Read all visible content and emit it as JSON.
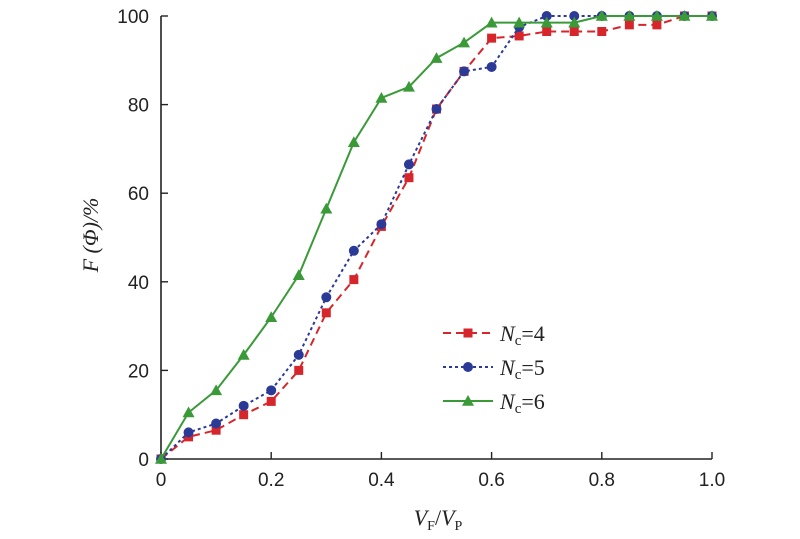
{
  "chart_data": {
    "type": "line",
    "xlabel": {
      "main": "V",
      "sub1": "F",
      "sep": "/",
      "main2": "V",
      "sub2": "P"
    },
    "ylabel": "F (Φ)/%",
    "xlim": [
      0,
      1.0
    ],
    "ylim": [
      0,
      100
    ],
    "xticks": [
      "0",
      "0.2",
      "0.4",
      "0.6",
      "0.8",
      "1.0"
    ],
    "yticks": [
      "0",
      "20",
      "40",
      "60",
      "80",
      "100"
    ],
    "xtick_values": [
      0,
      0.2,
      0.4,
      0.6,
      0.8,
      1.0
    ],
    "ytick_values": [
      0,
      20,
      40,
      60,
      80,
      100
    ],
    "grid": false,
    "legend_position": "center-right",
    "series": [
      {
        "name": "Nc=4",
        "label_main": "N",
        "label_sub": "c",
        "label_value": "=4",
        "color": "#d7262b",
        "marker": "square",
        "dash": "dashed",
        "x": [
          0,
          0.05,
          0.1,
          0.15,
          0.2,
          0.25,
          0.3,
          0.35,
          0.4,
          0.45,
          0.5,
          0.55,
          0.6,
          0.65,
          0.7,
          0.75,
          0.8,
          0.85,
          0.9,
          0.95,
          1.0
        ],
        "values": [
          0,
          5,
          6.5,
          10,
          13,
          20,
          33,
          40.5,
          52.5,
          63.5,
          79,
          87.5,
          95,
          95.5,
          96.5,
          96.5,
          96.5,
          98,
          98,
          100,
          100
        ]
      },
      {
        "name": "Nc=5",
        "label_main": "N",
        "label_sub": "c",
        "label_value": "=5",
        "color": "#2b3a97",
        "marker": "circle",
        "dash": "dotted",
        "x": [
          0,
          0.05,
          0.1,
          0.15,
          0.2,
          0.25,
          0.3,
          0.35,
          0.4,
          0.45,
          0.5,
          0.55,
          0.6,
          0.65,
          0.7,
          0.75,
          0.8,
          0.85,
          0.9,
          0.95,
          1.0
        ],
        "values": [
          0,
          6,
          8,
          12,
          15.5,
          23.5,
          36.5,
          47,
          53,
          66.5,
          79,
          87.5,
          88.5,
          97.5,
          100,
          100,
          100,
          100,
          100,
          100,
          100
        ]
      },
      {
        "name": "Nc=6",
        "label_main": "N",
        "label_sub": "c",
        "label_value": "=6",
        "color": "#3a9a38",
        "marker": "triangle",
        "dash": "solid",
        "x": [
          0,
          0.05,
          0.1,
          0.15,
          0.2,
          0.25,
          0.3,
          0.35,
          0.4,
          0.45,
          0.5,
          0.55,
          0.6,
          0.65,
          0.7,
          0.75,
          0.8,
          0.85,
          0.9,
          0.95,
          1.0
        ],
        "values": [
          0,
          10.5,
          15.5,
          23.5,
          32,
          41.5,
          56.5,
          71.5,
          81.5,
          84,
          90.5,
          94,
          98.5,
          98.5,
          98.5,
          98.5,
          100,
          100,
          100,
          100,
          100
        ]
      }
    ]
  }
}
